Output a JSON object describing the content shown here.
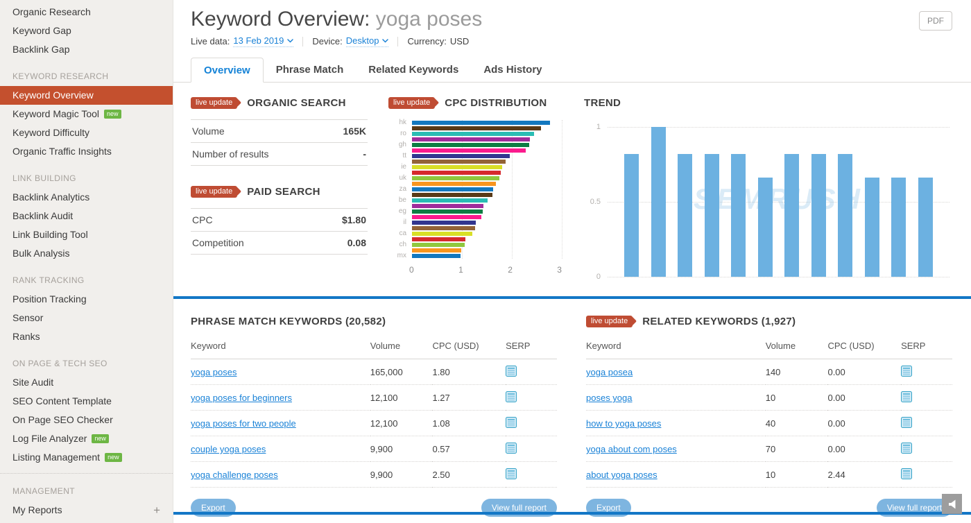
{
  "sidebar": {
    "items": [
      {
        "type": "item",
        "label": "Organic Research"
      },
      {
        "type": "item",
        "label": "Keyword Gap"
      },
      {
        "type": "item",
        "label": "Backlink Gap"
      },
      {
        "type": "section",
        "label": "KEYWORD RESEARCH"
      },
      {
        "type": "item",
        "label": "Keyword Overview",
        "active": true
      },
      {
        "type": "item",
        "label": "Keyword Magic Tool",
        "badge": "new"
      },
      {
        "type": "item",
        "label": "Keyword Difficulty"
      },
      {
        "type": "item",
        "label": "Organic Traffic Insights"
      },
      {
        "type": "section",
        "label": "LINK BUILDING"
      },
      {
        "type": "item",
        "label": "Backlink Analytics"
      },
      {
        "type": "item",
        "label": "Backlink Audit"
      },
      {
        "type": "item",
        "label": "Link Building Tool"
      },
      {
        "type": "item",
        "label": "Bulk Analysis"
      },
      {
        "type": "section",
        "label": "RANK TRACKING"
      },
      {
        "type": "item",
        "label": "Position Tracking"
      },
      {
        "type": "item",
        "label": "Sensor"
      },
      {
        "type": "item",
        "label": "Ranks"
      },
      {
        "type": "section",
        "label": "ON PAGE & TECH SEO"
      },
      {
        "type": "item",
        "label": "Site Audit"
      },
      {
        "type": "item",
        "label": "SEO Content Template"
      },
      {
        "type": "item",
        "label": "On Page SEO Checker"
      },
      {
        "type": "item",
        "label": "Log File Analyzer",
        "badge": "new"
      },
      {
        "type": "item",
        "label": "Listing Management",
        "badge": "new"
      },
      {
        "type": "divider"
      },
      {
        "type": "section",
        "label": "MANAGEMENT"
      },
      {
        "type": "item",
        "label": "My Reports",
        "plus": true
      }
    ]
  },
  "header": {
    "title_prefix": "Keyword Overview:",
    "title_keyword": "yoga poses",
    "live_data_label": "Live data:",
    "live_data_value": "13 Feb 2019",
    "device_label": "Device:",
    "device_value": "Desktop",
    "currency_label": "Currency:",
    "currency_value": "USD",
    "pdf_label": "PDF"
  },
  "tabs": [
    {
      "label": "Overview",
      "active": true
    },
    {
      "label": "Phrase Match"
    },
    {
      "label": "Related Keywords"
    },
    {
      "label": "Ads History"
    }
  ],
  "panels": {
    "organic": {
      "badge": "live update",
      "title": "ORGANIC SEARCH",
      "rows": [
        {
          "label": "Volume",
          "value": "165K"
        },
        {
          "label": "Number of results",
          "value": "-"
        }
      ]
    },
    "paid": {
      "badge": "live update",
      "title": "PAID SEARCH",
      "rows": [
        {
          "label": "CPC",
          "value": "$1.80"
        },
        {
          "label": "Competition",
          "value": "0.08"
        }
      ]
    }
  },
  "chart_data": [
    {
      "type": "bar",
      "orientation": "horizontal",
      "title": "CPC DISTRIBUTION",
      "badge": "live update",
      "xlim": [
        0,
        3
      ],
      "x_ticks": [
        "0",
        "1",
        "2",
        "3"
      ],
      "grid": true,
      "palette": [
        "#1378bf",
        "#583a18",
        "#2abdb4",
        "#a02d9b",
        "#0e7d43",
        "#fb1b8d",
        "#32368f",
        "#936438",
        "#d9df27",
        "#d62a2d",
        "#90c83e",
        "#f8961f"
      ],
      "bars": [
        {
          "label": "hk",
          "value": 2.76
        },
        {
          "label": "",
          "value": 2.58
        },
        {
          "label": "ro",
          "value": 2.44
        },
        {
          "label": "",
          "value": 2.36
        },
        {
          "label": "gh",
          "value": 2.35
        },
        {
          "label": "",
          "value": 2.28
        },
        {
          "label": "tt",
          "value": 1.96
        },
        {
          "label": "",
          "value": 1.87
        },
        {
          "label": "ie",
          "value": 1.8
        },
        {
          "label": "",
          "value": 1.78
        },
        {
          "label": "uk",
          "value": 1.75
        },
        {
          "label": "",
          "value": 1.68
        },
        {
          "label": "za",
          "value": 1.62
        },
        {
          "label": "",
          "value": 1.61
        },
        {
          "label": "be",
          "value": 1.52
        },
        {
          "label": "",
          "value": 1.43
        },
        {
          "label": "eg",
          "value": 1.42
        },
        {
          "label": "",
          "value": 1.39
        },
        {
          "label": "il",
          "value": 1.28
        },
        {
          "label": "",
          "value": 1.27
        },
        {
          "label": "ca",
          "value": 1.21
        },
        {
          "label": "",
          "value": 1.07
        },
        {
          "label": "ch",
          "value": 1.05
        },
        {
          "label": "",
          "value": 0.99
        },
        {
          "label": "mx",
          "value": 0.97
        }
      ]
    },
    {
      "type": "bar",
      "orientation": "vertical",
      "title": "TREND",
      "ylim": [
        0,
        1
      ],
      "y_ticks": [
        "1",
        "0.5",
        "0"
      ],
      "grid": true,
      "bar_color": "#6cb1e1",
      "values": [
        0.82,
        1,
        0.82,
        0.82,
        0.82,
        0.66,
        0.82,
        0.82,
        0.82,
        0.66,
        0.66,
        0.66
      ],
      "watermark": "SEMRUSH"
    }
  ],
  "tables": {
    "phrase": {
      "title": "PHRASE MATCH KEYWORDS (20,582)",
      "columns": [
        "Keyword",
        "Volume",
        "CPC (USD)",
        "SERP"
      ],
      "rows": [
        {
          "keyword": "yoga poses",
          "volume": "165,000",
          "cpc": "1.80"
        },
        {
          "keyword": "yoga poses for beginners",
          "volume": "12,100",
          "cpc": "1.27"
        },
        {
          "keyword": "yoga poses for two people",
          "volume": "12,100",
          "cpc": "1.08"
        },
        {
          "keyword": "couple yoga poses",
          "volume": "9,900",
          "cpc": "0.57"
        },
        {
          "keyword": "yoga challenge poses",
          "volume": "9,900",
          "cpc": "2.50"
        }
      ],
      "export_label": "Export",
      "view_full_label": "View full report"
    },
    "related": {
      "badge": "live update",
      "title": "RELATED KEYWORDS (1,927)",
      "columns": [
        "Keyword",
        "Volume",
        "CPC (USD)",
        "SERP"
      ],
      "rows": [
        {
          "keyword": "yoga posea",
          "volume": "140",
          "cpc": "0.00"
        },
        {
          "keyword": "poses yoga",
          "volume": "10",
          "cpc": "0.00"
        },
        {
          "keyword": "how to yoga poses",
          "volume": "40",
          "cpc": "0.00"
        },
        {
          "keyword": "yoga about com poses",
          "volume": "70",
          "cpc": "0.00"
        },
        {
          "keyword": "about yoga poses",
          "volume": "10",
          "cpc": "2.44"
        }
      ],
      "export_label": "Export",
      "view_full_label": "View full report"
    }
  },
  "colors": {
    "sidebar_active": "#c4502e",
    "live_badge": "#bf4c33",
    "link_blue": "#1a82d7",
    "trend_bar": "#6cb1e1",
    "pill_button": "#7eb5e0",
    "divider_blue": "#1377c6",
    "new_badge_green": "#6db644"
  }
}
